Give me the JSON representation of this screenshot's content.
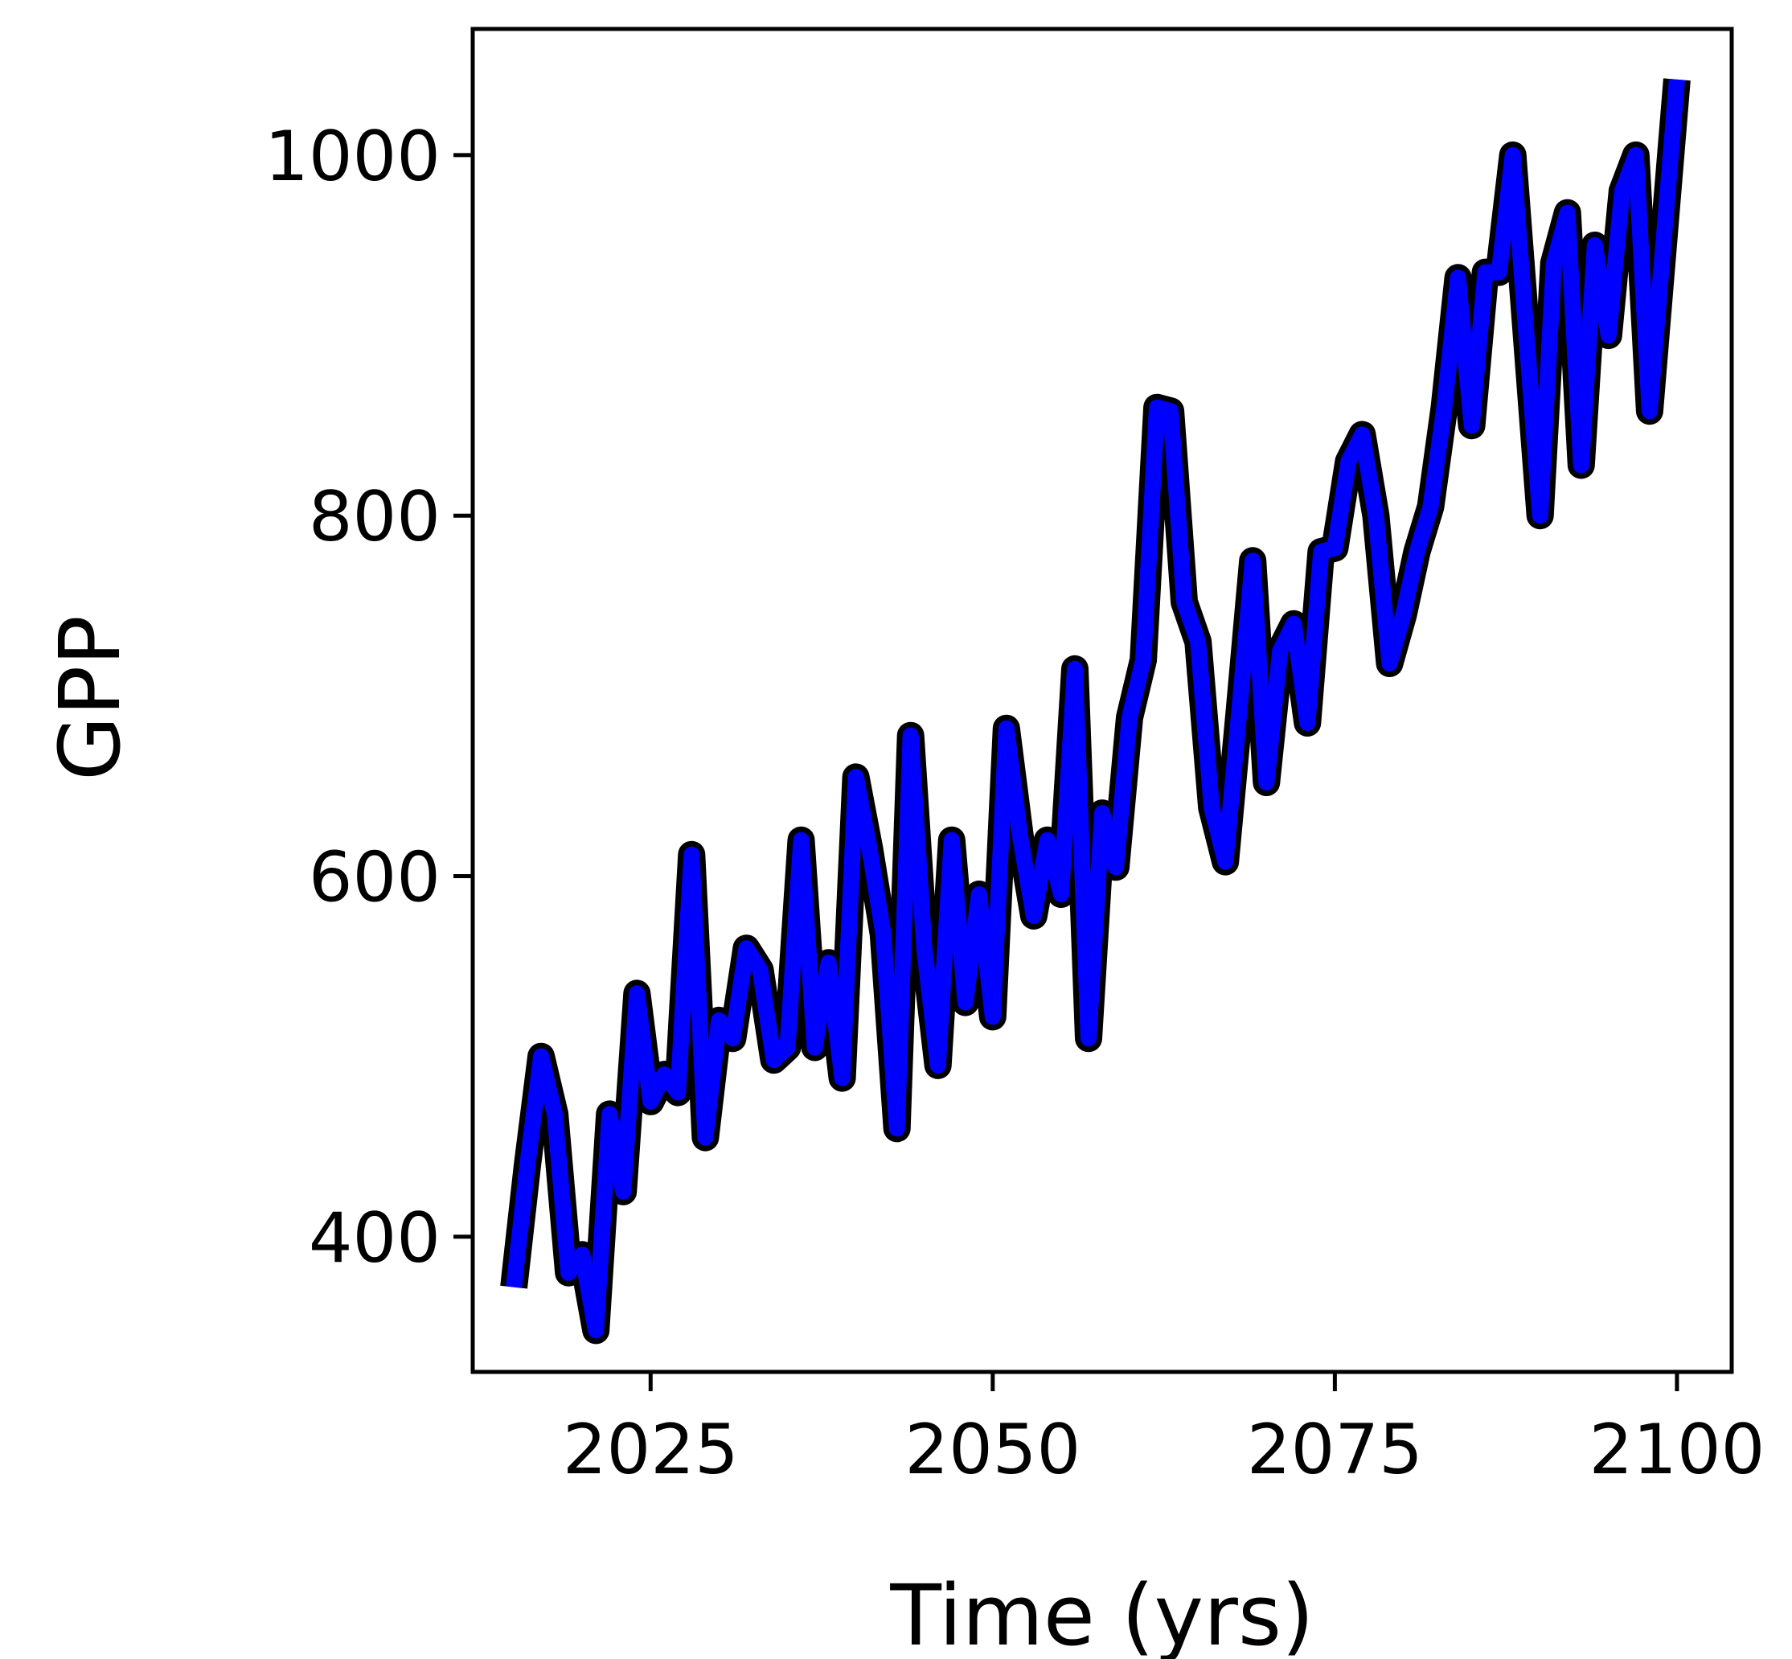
{
  "chart_data": {
    "type": "line",
    "title": "",
    "xlabel": "Time (yrs)",
    "ylabel": "GPP",
    "xlim": [
      2012,
      2104
    ],
    "ylim": [
      325,
      1070
    ],
    "x_ticks": [
      2025,
      2050,
      2075,
      2100
    ],
    "y_ticks": [
      400,
      600,
      800,
      1000
    ],
    "grid": false,
    "line_color": "#0000ff",
    "outline_color": "#000000",
    "series": [
      {
        "x": [
          2015,
          2016,
          2017,
          2018,
          2019,
          2020,
          2021,
          2022,
          2023,
          2024,
          2025,
          2026,
          2027,
          2028,
          2029,
          2030,
          2031,
          2032,
          2033,
          2034,
          2035,
          2036,
          2037,
          2038,
          2039,
          2040,
          2041,
          2042,
          2043,
          2044,
          2045,
          2046,
          2047,
          2048,
          2049,
          2050,
          2051,
          2052,
          2053,
          2054,
          2055,
          2056,
          2057,
          2058,
          2059,
          2060,
          2061,
          2062,
          2063,
          2064,
          2065,
          2066,
          2067,
          2068,
          2069,
          2070,
          2071,
          2072,
          2073,
          2074,
          2075,
          2076,
          2077,
          2078,
          2079,
          2080,
          2081,
          2082,
          2083,
          2084,
          2085,
          2086,
          2087,
          2088,
          2089,
          2090,
          2091,
          2092,
          2093,
          2094,
          2095,
          2096,
          2097,
          2098,
          2099,
          2100
        ],
        "y": [
          372,
          440,
          500,
          468,
          380,
          390,
          348,
          468,
          425,
          535,
          475,
          490,
          480,
          612,
          455,
          520,
          510,
          560,
          548,
          498,
          505,
          620,
          505,
          552,
          488,
          655,
          615,
          568,
          460,
          678,
          560,
          495,
          620,
          530,
          590,
          522,
          682,
          622,
          578,
          620,
          590,
          715,
          510,
          635,
          605,
          688,
          720,
          860,
          858,
          752,
          730,
          638,
          608,
          690,
          775,
          652,
          725,
          740,
          685,
          780,
          782,
          830,
          845,
          800,
          718,
          745,
          780,
          805,
          860,
          932,
          850,
          935,
          935,
          1000,
          900,
          800,
          940,
          968,
          828,
          950,
          900,
          980,
          1000,
          858,
          950,
          1042
        ]
      }
    ]
  }
}
